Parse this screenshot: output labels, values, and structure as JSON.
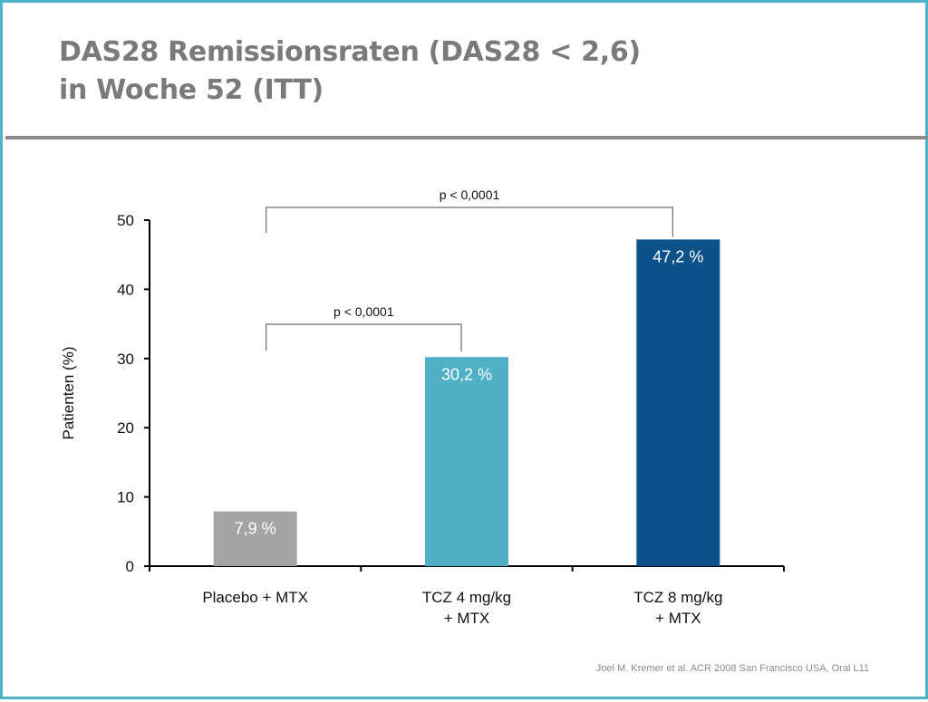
{
  "slide": {
    "title_line1": "DAS28 Remissionsraten (DAS28 < 2,6)",
    "title_line2": "in Woche 52 (ITT)",
    "footnote": "Joel M. Kremer et al. ACR 2008 San Francisco USA, Oral L11"
  },
  "colors": {
    "frame": "#4fb3c9",
    "title": "#7a7a7a",
    "placebo": "#a3a4a6",
    "tcz4": "#4fb0c6",
    "tcz8": "#0a5289"
  },
  "chart_data": {
    "type": "bar",
    "ylabel": "Patienten (%)",
    "ylim": [
      0,
      50
    ],
    "yticks": [
      0,
      10,
      20,
      30,
      40,
      50
    ],
    "categories": [
      {
        "line1": "Placebo + MTX",
        "line2": ""
      },
      {
        "line1": "TCZ 4 mg/kg",
        "line2": "+ MTX"
      },
      {
        "line1": "TCZ 8 mg/kg",
        "line2": "+ MTX"
      }
    ],
    "values": [
      7.9,
      30.2,
      47.2
    ],
    "value_labels": [
      "7,9 %",
      "30,2 %",
      "47,2 %"
    ],
    "bar_colors": [
      "#a3a4a6",
      "#4fb0c6",
      "#0a5289"
    ],
    "significance": [
      {
        "from": 0,
        "to": 2,
        "label": "p < 0,0001"
      },
      {
        "from": 0,
        "to": 1,
        "label": "p < 0,0001"
      }
    ],
    "grid": false
  }
}
